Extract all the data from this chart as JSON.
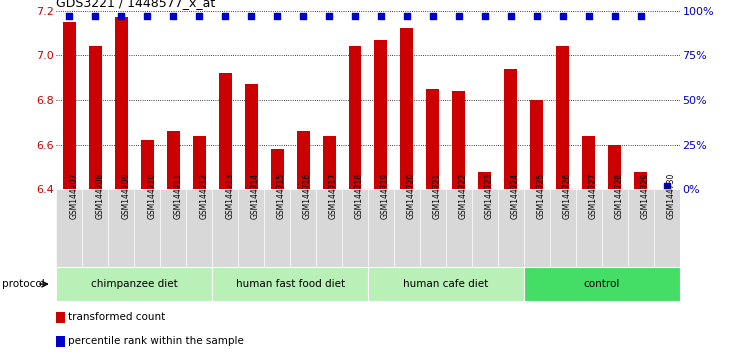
{
  "title": "GDS3221 / 1448577_x_at",
  "samples": [
    "GSM144707",
    "GSM144708",
    "GSM144709",
    "GSM144710",
    "GSM144711",
    "GSM144712",
    "GSM144713",
    "GSM144714",
    "GSM144715",
    "GSM144716",
    "GSM144717",
    "GSM144718",
    "GSM144719",
    "GSM144720",
    "GSM144721",
    "GSM144722",
    "GSM144723",
    "GSM144724",
    "GSM144725",
    "GSM144726",
    "GSM144727",
    "GSM144728",
    "GSM144729",
    "GSM144730"
  ],
  "bar_values": [
    7.15,
    7.04,
    7.17,
    6.62,
    6.66,
    6.64,
    6.92,
    6.87,
    6.58,
    6.66,
    6.64,
    7.04,
    7.07,
    7.12,
    6.85,
    6.84,
    6.48,
    6.94,
    6.8,
    7.04,
    6.64,
    6.6,
    6.48,
    6.4
  ],
  "percentile_values": [
    97,
    97,
    97,
    97,
    97,
    97,
    97,
    97,
    97,
    97,
    97,
    97,
    97,
    97,
    97,
    97,
    97,
    97,
    97,
    97,
    97,
    97,
    97,
    2
  ],
  "bar_color": "#cc0000",
  "dot_color": "#0000cc",
  "ylim_left": [
    6.4,
    7.2
  ],
  "ylim_right": [
    0,
    100
  ],
  "yticks_left": [
    6.4,
    6.6,
    6.8,
    7.0,
    7.2
  ],
  "yticks_right": [
    0,
    25,
    50,
    75,
    100
  ],
  "ytick_labels_right": [
    "0%",
    "25%",
    "50%",
    "75%",
    "100%"
  ],
  "groups": [
    {
      "label": "chimpanzee diet",
      "start": 0,
      "end": 6,
      "color": "#b8f0b8"
    },
    {
      "label": "human fast food diet",
      "start": 6,
      "end": 12,
      "color": "#b8f0b8"
    },
    {
      "label": "human cafe diet",
      "start": 12,
      "end": 18,
      "color": "#b8f0b8"
    },
    {
      "label": "control",
      "start": 18,
      "end": 24,
      "color": "#44dd66"
    }
  ],
  "legend_items": [
    {
      "label": "transformed count",
      "color": "#cc0000"
    },
    {
      "label": "percentile rank within the sample",
      "color": "#0000cc"
    }
  ],
  "protocol_label": "protocol",
  "tick_label_color_left": "#cc0000",
  "tick_label_color_right": "#0000cc"
}
